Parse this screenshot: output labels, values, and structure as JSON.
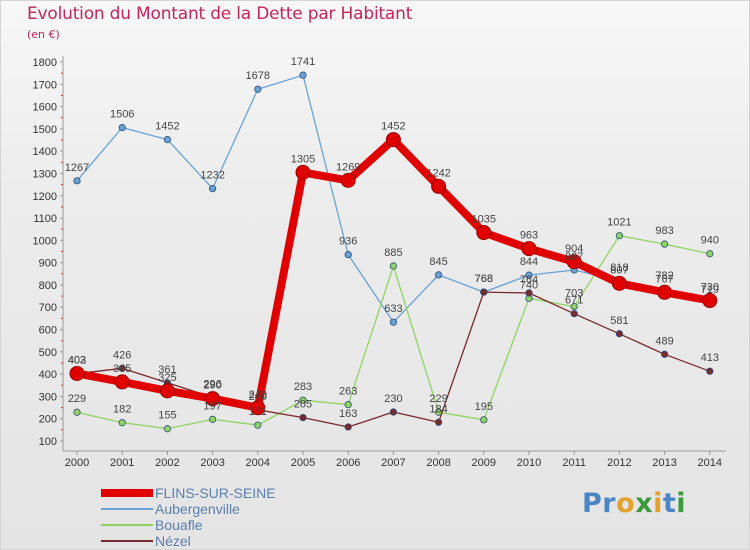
{
  "title": "Evolution du Montant de la Dette par Habitant",
  "unit_label": "(en €)",
  "logo": {
    "text": "Proxiti",
    "letters": [
      {
        "ch": "P",
        "color": "#4a86c5"
      },
      {
        "ch": "r",
        "color": "#4a86c5"
      },
      {
        "ch": "o",
        "color": "#e2a12c"
      },
      {
        "ch": "x",
        "color": "#3a9a3a"
      },
      {
        "ch": "i",
        "color": "#e2a12c"
      },
      {
        "ch": "t",
        "color": "#4a86c5"
      },
      {
        "ch": "i",
        "color": "#3a9a3a"
      }
    ]
  },
  "chart_data": {
    "type": "line",
    "title": "Evolution du Montant de la Dette par Habitant",
    "ylabel": "(en €)",
    "xlabel": "",
    "x": [
      "2000",
      "2001",
      "2002",
      "2003",
      "2004",
      "2005",
      "2006",
      "2007",
      "2008",
      "2009",
      "2010",
      "2011",
      "2012",
      "2013",
      "2014"
    ],
    "ylim": [
      100,
      1800
    ],
    "yticks": [
      100,
      200,
      300,
      400,
      500,
      600,
      700,
      800,
      900,
      1000,
      1100,
      1200,
      1300,
      1400,
      1500,
      1600,
      1700,
      1800
    ],
    "grid": false,
    "legend_position": "bottom-left",
    "series": [
      {
        "name": "FLINS-SUR-SEINE",
        "color": "#e00000",
        "emphasis": true,
        "values": [
          403,
          365,
          325,
          290,
          249,
          1305,
          1269,
          1452,
          1242,
          1035,
          963,
          904,
          807,
          767,
          730
        ]
      },
      {
        "name": "Aubergenville",
        "color": "#6aa2d6",
        "values": [
          1267,
          1506,
          1452,
          1232,
          1678,
          1741,
          936,
          633,
          845,
          768,
          844,
          867,
          818,
          782,
          719
        ]
      },
      {
        "name": "Bouafle",
        "color": "#8fd462",
        "values": [
          229,
          182,
          155,
          197,
          171,
          283,
          263,
          885,
          229,
          195,
          740,
          703,
          1021,
          983,
          940
        ]
      },
      {
        "name": "Nézel",
        "color": "#7a2a2a",
        "values": [
          402,
          426,
          361,
          296,
          240,
          205,
          163,
          230,
          184,
          768,
          764,
          671,
          581,
          489,
          413
        ]
      }
    ]
  }
}
